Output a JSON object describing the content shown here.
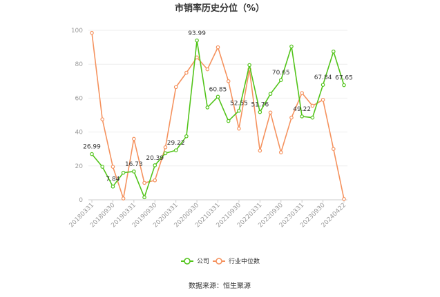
{
  "chart_data": {
    "type": "line",
    "title": "市销率历史分位（%）",
    "ylim": [
      0,
      100
    ],
    "yticks": [
      0,
      20,
      40,
      60,
      80,
      100
    ],
    "x_tick_labels": [
      "20180331",
      "20180930",
      "20190331",
      "20190930",
      "20200331",
      "20200930",
      "20210331",
      "20210930",
      "20220331",
      "20220930",
      "20230331",
      "20230930",
      "20240422"
    ],
    "x_tick_indices": [
      0,
      2,
      4,
      6,
      8,
      10,
      12,
      14,
      16,
      18,
      20,
      22,
      24
    ],
    "grid": true,
    "legend_position": "bottom",
    "series": [
      {
        "name": "公司",
        "color": "#52c41a",
        "values": [
          26.99,
          19.5,
          7.84,
          16.0,
          16.73,
          1.5,
          20.39,
          27.5,
          29.22,
          37.5,
          93.99,
          54.5,
          60.85,
          46.5,
          52.55,
          79.5,
          51.76,
          62.5,
          70.65,
          90.5,
          49.22,
          48.5,
          67.84,
          87.5,
          67.65
        ],
        "labels": {
          "0": "26.99",
          "2": "7.84",
          "4": "16.73",
          "6": "20.39",
          "8": "29.22",
          "10": "93.99",
          "12": "60.85",
          "14": "52.55",
          "16": "51.76",
          "18": "70.65",
          "20": "49.22",
          "22": "67.84",
          "24": "67.65"
        }
      },
      {
        "name": "行业中位数",
        "color": "#f5925e",
        "values": [
          98.5,
          47.5,
          19.5,
          0.8,
          36.0,
          10.0,
          11.5,
          31.0,
          66.5,
          75.0,
          84.0,
          77.0,
          90.0,
          70.0,
          42.0,
          77.0,
          29.0,
          51.5,
          28.0,
          48.5,
          63.0,
          55.5,
          59.0,
          30.0,
          0.5
        ]
      }
    ]
  },
  "legend": {
    "company_label": "公司",
    "industry_label": "行业中位数"
  },
  "source_text": "数据来源：恒生聚源"
}
